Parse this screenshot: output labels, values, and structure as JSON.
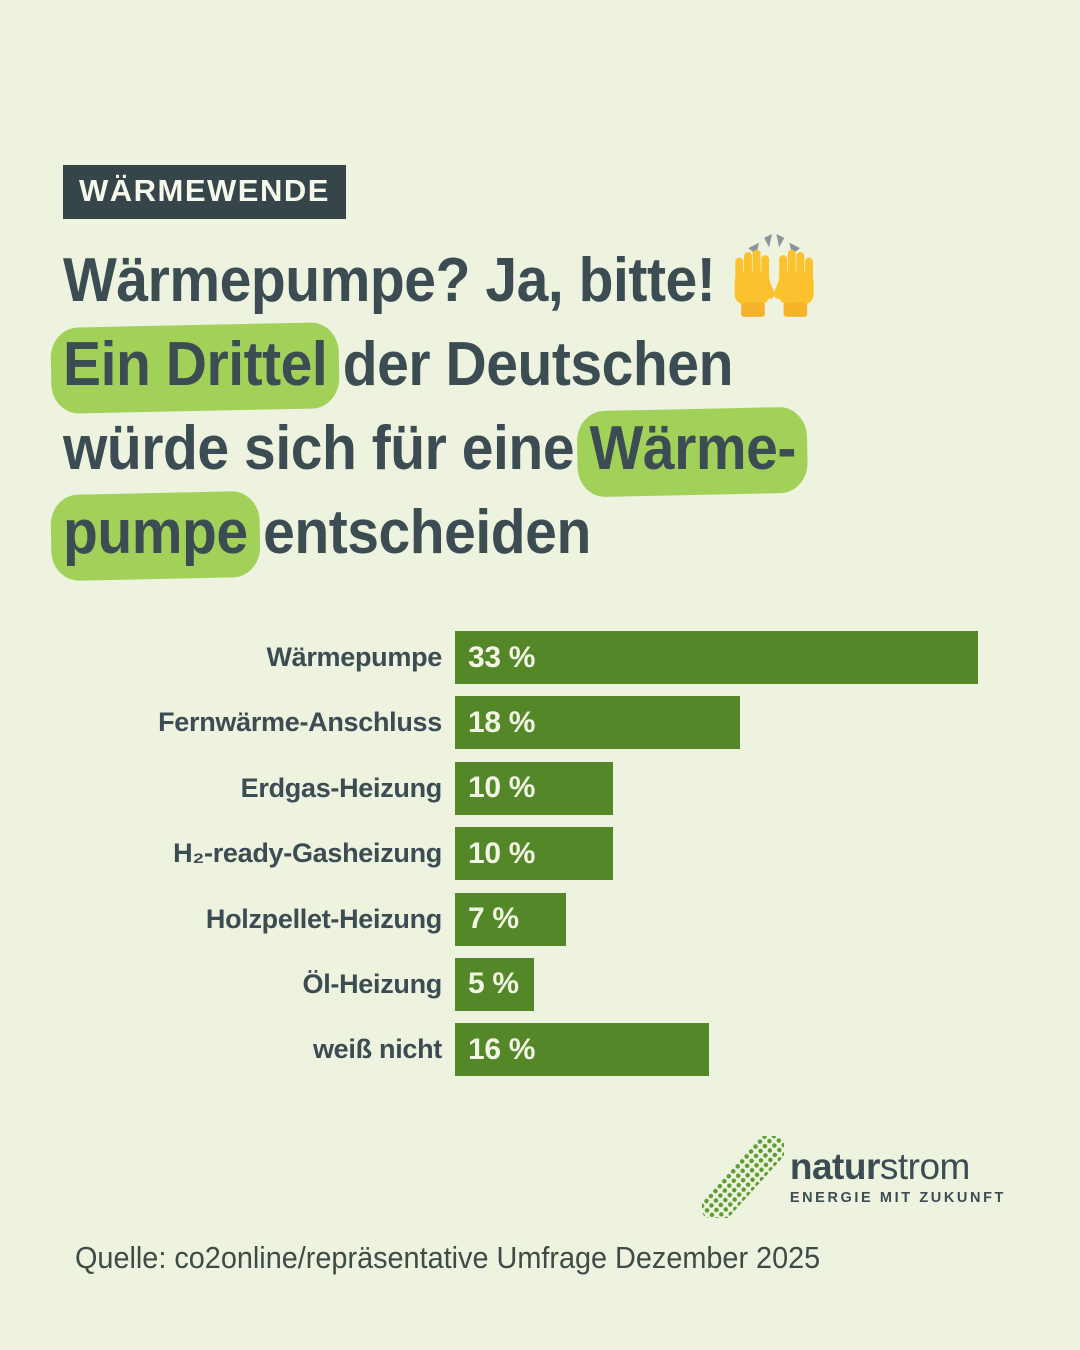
{
  "badge": {
    "label": "WÄRMEWENDE"
  },
  "headline": {
    "line1": "Wärmepumpe? Ja, bitte!",
    "emoji_icon": "raising-hands",
    "line2_highlight": "Ein Drittel",
    "line2_rest": " der Deutschen",
    "line3_rest": "würde sich für eine ",
    "line3_highlight": "Wärme-",
    "line4_highlight": "pumpe",
    "line4_rest": " entscheiden"
  },
  "chart_data": {
    "type": "bar",
    "orientation": "horizontal",
    "categories": [
      "Wärmepumpe",
      "Fernwärme-Anschluss",
      "Erdgas-Heizung",
      "H₂-ready-Gasheizung",
      "Holzpellet-Heizung",
      "Öl-Heizung",
      "weiß nicht"
    ],
    "values": [
      33,
      18,
      10,
      10,
      7,
      5,
      16
    ],
    "value_labels": [
      "33 %",
      "18 %",
      "10 %",
      "10 %",
      "7 %",
      "5 %",
      "16 %"
    ],
    "xlim": [
      0,
      33
    ],
    "grid": false,
    "legend": "none",
    "value_label_position": "inside-left"
  },
  "logo": {
    "brand_bold": "natur",
    "brand_regular": "strom",
    "tagline": "ENERGIE MIT ZUKUNFT"
  },
  "source": {
    "text": "Quelle: co2online/repräsentative Umfrage Dezember 2025"
  },
  "colors": {
    "bg": "#edf3de",
    "dark": "#3c4c53",
    "badge_bg": "#36454a",
    "badge_text": "#f5f8ea",
    "highlight": "#a2d15a",
    "bar_color": "#538728",
    "bar_value": "#f2f5e3",
    "source_text": "#3e4c48",
    "logo_green": "#5e9b31"
  }
}
